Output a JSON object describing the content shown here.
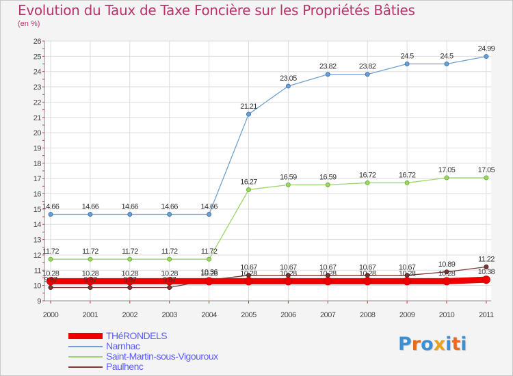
{
  "title": "Evolution du Taux de Taxe Foncière sur les Propriétés Bâties",
  "subtitle": "(en %)",
  "chart_data": {
    "type": "line",
    "title": "Evolution du Taux de Taxe Foncière sur les Propriétés Bâties",
    "ylabel": "(en %)",
    "xlabel": "",
    "x": [
      "2000",
      "2001",
      "2002",
      "2003",
      "2004",
      "2005",
      "2006",
      "2007",
      "2008",
      "2009",
      "2010",
      "2011"
    ],
    "ylim": [
      9,
      26
    ],
    "yticks": [
      9,
      10,
      11,
      12,
      13,
      14,
      15,
      16,
      17,
      18,
      19,
      20,
      21,
      22,
      23,
      24,
      25,
      26
    ],
    "grid": true,
    "legend_position": "bottom-left",
    "series": [
      {
        "name": "THéRONDELS",
        "color": "#ee0000",
        "thick": true,
        "values": [
          10.28,
          10.28,
          10.28,
          10.28,
          10.28,
          10.28,
          10.28,
          10.28,
          10.28,
          10.28,
          10.28,
          10.38
        ],
        "labels": [
          "10.28",
          "10.28",
          "10.28",
          "10.28",
          "10.28",
          "10.28",
          "10.28",
          "10.28",
          "10.28",
          "10.28",
          "10.28",
          "10.38"
        ]
      },
      {
        "name": "Narnhac",
        "color": "#6f9fd0",
        "thick": false,
        "values": [
          14.66,
          14.66,
          14.66,
          14.66,
          14.66,
          21.21,
          23.05,
          23.82,
          23.82,
          24.5,
          24.5,
          24.99
        ],
        "labels": [
          "14.66",
          "14.66",
          "14.66",
          "14.66",
          "14.66",
          "21.21",
          "23.05",
          "23.82",
          "23.82",
          "24.5",
          "24.5",
          "24.99"
        ]
      },
      {
        "name": "Saint-Martin-sous-Vigouroux",
        "color": "#9ed46a",
        "thick": false,
        "values": [
          11.72,
          11.72,
          11.72,
          11.72,
          11.72,
          16.27,
          16.59,
          16.59,
          16.72,
          16.72,
          17.05,
          17.05
        ],
        "labels": [
          "11.72",
          "11.72",
          "11.72",
          "11.72",
          "11.72",
          "16.27",
          "16.59",
          "16.59",
          "16.72",
          "16.72",
          "17.05",
          "17.05"
        ]
      },
      {
        "name": "Paulhenc",
        "color": "#7a3a3a",
        "thick": false,
        "values": [
          9.87,
          9.87,
          9.87,
          9.87,
          10.36,
          10.67,
          10.67,
          10.67,
          10.67,
          10.67,
          10.89,
          11.22
        ],
        "labels": [
          "9.87",
          "9.87",
          "9.87",
          "9.87",
          "10.36",
          "10.67",
          "10.67",
          "10.67",
          "10.67",
          "10.67",
          "10.89",
          "11.22"
        ]
      }
    ]
  },
  "logo": {
    "text": "Proxiti",
    "colors": [
      "#3b8fd4",
      "#e86a1e",
      "#3b8fd4",
      "#e8a21e",
      "#3b8fd4",
      "#e86a1e",
      "#3b8fd4"
    ]
  }
}
